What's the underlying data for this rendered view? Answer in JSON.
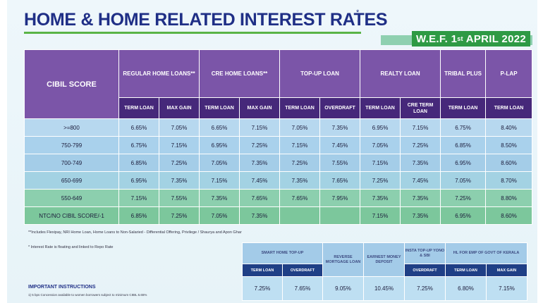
{
  "title": "HOME & HOME RELATED INTEREST RATES",
  "title_mark": "*",
  "wef": {
    "prefix": "W.E.F. 1",
    "suffix": "st",
    "rest": " APRIL 2022"
  },
  "main_table": {
    "cibil_header": "CIBIL SCORE",
    "groups": [
      {
        "label": "REGULAR HOME LOANS**",
        "span": 2
      },
      {
        "label": "CRE HOME LOANS**",
        "span": 2
      },
      {
        "label": "TOP-UP LOAN",
        "span": 2
      },
      {
        "label": "REALTY LOAN",
        "span": 2
      },
      {
        "label": "TRIBAL PLUS",
        "span": 1
      },
      {
        "label": "P-LAP",
        "span": 1
      }
    ],
    "subheaders": [
      "TERM LOAN",
      "MAX GAIN",
      "TERM LOAN",
      "MAX GAIN",
      "TERM LOAN",
      "OVERDRAFT",
      "TERM LOAN",
      "CRE TERM LOAN",
      "TERM LOAN",
      "TERM LOAN"
    ],
    "rows": [
      {
        "score": ">=800",
        "values": [
          "6.65%",
          "7.05%",
          "6.65%",
          "7.15%",
          "7.05%",
          "7.35%",
          "6.95%",
          "7.15%",
          "6.75%",
          "8.40%"
        ]
      },
      {
        "score": "750-799",
        "values": [
          "6.75%",
          "7.15%",
          "6.95%",
          "7.25%",
          "7.15%",
          "7.45%",
          "7.05%",
          "7.25%",
          "6.85%",
          "8.50%"
        ]
      },
      {
        "score": "700-749",
        "values": [
          "6.85%",
          "7.25%",
          "7.05%",
          "7.35%",
          "7.25%",
          "7.55%",
          "7.15%",
          "7.35%",
          "6.95%",
          "8.60%"
        ]
      },
      {
        "score": "650-699",
        "values": [
          "6.95%",
          "7.35%",
          "7.15%",
          "7.45%",
          "7.35%",
          "7.65%",
          "7.25%",
          "7.45%",
          "7.05%",
          "8.70%"
        ]
      },
      {
        "score": "550-649",
        "values": [
          "7.15%",
          "7.55%",
          "7.35%",
          "7.65%",
          "7.65%",
          "7.95%",
          "7.35%",
          "7.35%",
          "7.25%",
          "8.80%"
        ]
      },
      {
        "score": "NTC/NO CIBIL SCORE/-1",
        "values": [
          "6.85%",
          "7.25%",
          "7.05%",
          "7.35%",
          "",
          "",
          "7.15%",
          "7.35%",
          "6.95%",
          "8.60%"
        ]
      }
    ]
  },
  "notes": {
    "note1": "**Includes Flexipay, NRI Home Loan, Home Loans to Non-Salaried - Differential Offering, Privilege / Shaurya and Apon Ghar",
    "note2": "* Interest Rate is floating and linked to Repo Rate",
    "instructions_title": "IMPORTANT INSTRUCTIONS",
    "instructions_text": "1) 5 bps Concession available to women borrowers subject to minimum CIBIL 6.65%"
  },
  "bottom_table": {
    "groups": [
      {
        "label": "SMART HOME TOP-UP",
        "span": 2
      },
      {
        "label": "REVERSE MORTGAGE LOAN",
        "span": 1
      },
      {
        "label": "EARNEST MONEY DEPOSIT",
        "span": 1
      },
      {
        "label": "INSTA TOP-UP YONO & SBI",
        "span": 1
      },
      {
        "label": "HL FOR EMP OF GOVT OF KERALA",
        "span": 2
      }
    ],
    "subheaders": [
      "TERM LOAN",
      "OVERDRAFT",
      "",
      "",
      "OVERDRAFT",
      "TERM LOAN",
      "MAX GAIN"
    ],
    "values": [
      "7.25%",
      "7.65%",
      "9.05%",
      "10.45%",
      "7.25%",
      "6.80%",
      "7.15%"
    ]
  }
}
